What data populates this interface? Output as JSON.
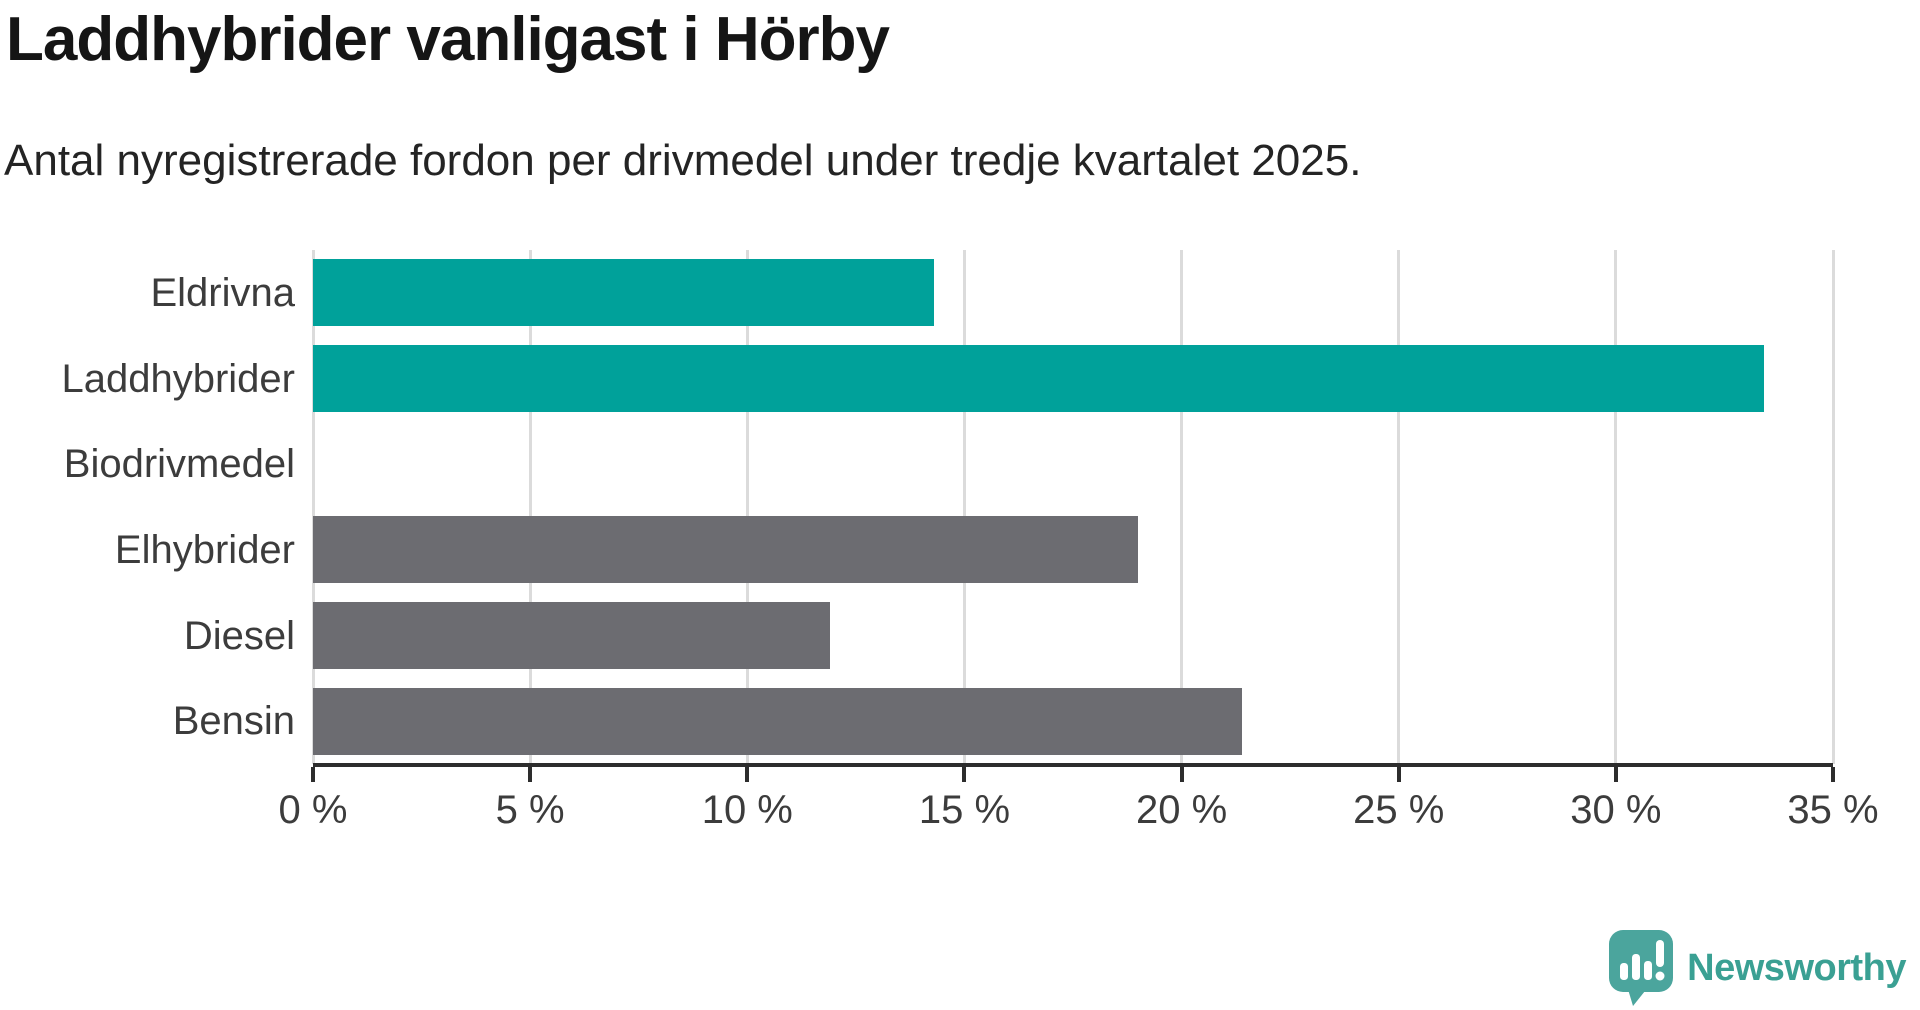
{
  "chart_data": {
    "type": "bar",
    "orientation": "horizontal",
    "title": "Laddhybrider vanligast i Hörby",
    "subtitle": "Antal nyregistrerade fordon per drivmedel under tredje kvartalet 2025.",
    "categories": [
      "Eldrivna",
      "Laddhybrider",
      "Biodrivmedel",
      "Elhybrider",
      "Diesel",
      "Bensin"
    ],
    "values": [
      14.3,
      33.4,
      0,
      19.0,
      11.9,
      21.4
    ],
    "unit": "%",
    "xlim": [
      0,
      35
    ],
    "x_ticks": [
      "0 %",
      "5 %",
      "10 %",
      "15 %",
      "20 %",
      "25 %",
      "30 %",
      "35 %"
    ],
    "x_tick_values": [
      0,
      5,
      10,
      15,
      20,
      25,
      30,
      35
    ],
    "bar_colors": [
      "#00a19a",
      "#00a19a",
      "#6c6c71",
      "#6c6c71",
      "#6c6c71",
      "#6c6c71"
    ],
    "highlight_color": "#00a19a",
    "base_color": "#6c6c71",
    "gridline_color": "#dbdbdb",
    "axis_color": "#2d2d2d",
    "grid": "vertical-on",
    "legend": "none"
  },
  "footer": {
    "brand": "Newsworthy",
    "brand_color": "#3aa093",
    "logo_icon": "newsworthy-speech-bubble-chart-icon",
    "logo_color": "#4ba59d"
  }
}
